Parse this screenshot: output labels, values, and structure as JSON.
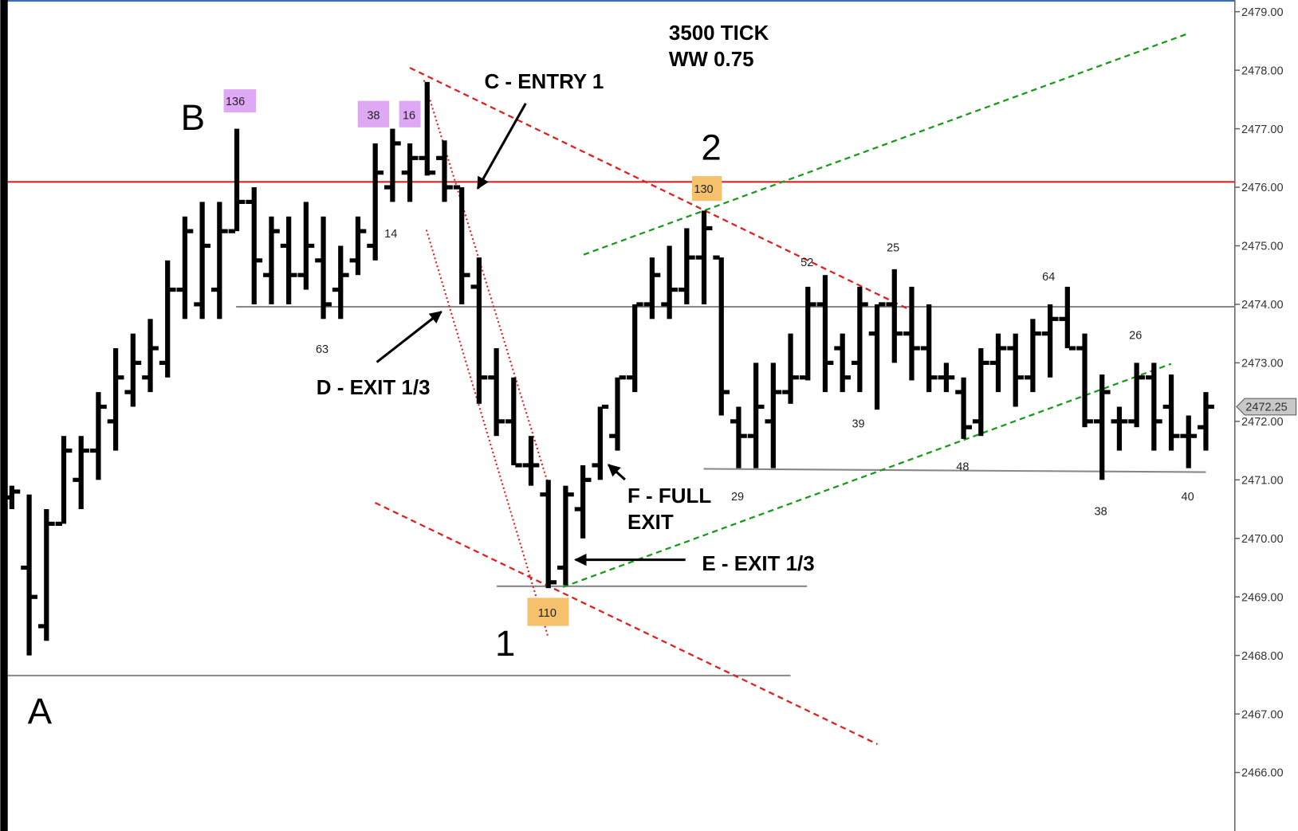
{
  "chart_data": {
    "type": "ohlc",
    "color": "#000000",
    "open": [
      2470.7,
      2469.5,
      2468.5,
      2470.25,
      2471.0,
      2471.5,
      2472.0,
      2472.5,
      2472.75,
      2473.0,
      2474.25,
      2474.0,
      2474.25,
      2475.25,
      2475.75,
      2474.5,
      2475.0,
      2474.5,
      2474.75,
      2474.25,
      2474.75,
      2475.0,
      2476.0,
      2476.25,
      2476.5,
      2476.5,
      2476.0,
      2474.3,
      2472.75,
      2472.0,
      2471.25,
      2470.75,
      2469.5,
      2470.5,
      2471.25,
      2471.75,
      2472.75,
      2474.0,
      2474.0,
      2474.25,
      2474.8,
      2474.8,
      2472.0,
      2471.75,
      2472.0,
      2472.5,
      2472.75,
      2474.0,
      2473.25,
      2473.0,
      2473.5,
      2474.0,
      2473.5,
      2473.25,
      2472.75,
      2472.5,
      2472.0,
      2473.0,
      2473.25,
      2472.75,
      2473.5,
      2473.75,
      2473.25,
      2472.0,
      2472.0,
      2472.0,
      2472.75,
      2472.25,
      2471.75,
      2471.9
    ],
    "high": [
      2470.9,
      2470.75,
      2470.5,
      2471.75,
      2471.75,
      2472.5,
      2473.25,
      2473.5,
      2473.75,
      2474.75,
      2475.5,
      2475.75,
      2475.75,
      2477.0,
      2476.0,
      2475.5,
      2475.5,
      2475.75,
      2475.5,
      2475.0,
      2475.5,
      2476.75,
      2477.0,
      2476.75,
      2477.8,
      2476.8,
      2476.0,
      2474.8,
      2473.25,
      2472.75,
      2471.75,
      2471.0,
      2470.9,
      2471.25,
      2472.25,
      2472.75,
      2474.0,
      2474.8,
      2475.0,
      2475.3,
      2475.6,
      2474.8,
      2472.25,
      2473.0,
      2473.0,
      2473.5,
      2474.3,
      2474.5,
      2473.5,
      2474.3,
      2474.0,
      2474.6,
      2474.3,
      2474.0,
      2473.0,
      2472.75,
      2473.25,
      2473.5,
      2473.5,
      2473.75,
      2474.0,
      2474.3,
      2473.5,
      2472.8,
      2472.25,
      2473.0,
      2473.0,
      2472.8,
      2472.1,
      2472.5
    ],
    "low": [
      2470.5,
      2468.0,
      2468.25,
      2470.25,
      2470.5,
      2471.0,
      2471.5,
      2472.25,
      2472.5,
      2472.75,
      2473.75,
      2473.75,
      2473.75,
      2475.25,
      2474.0,
      2474.0,
      2474.0,
      2474.25,
      2473.75,
      2473.75,
      2474.5,
      2474.75,
      2475.75,
      2475.75,
      2476.2,
      2475.75,
      2474.0,
      2472.3,
      2471.75,
      2471.25,
      2470.9,
      2469.15,
      2469.2,
      2470.0,
      2471.0,
      2471.5,
      2472.5,
      2473.75,
      2473.75,
      2474.0,
      2474.0,
      2472.1,
      2471.2,
      2471.2,
      2471.2,
      2472.3,
      2472.7,
      2472.5,
      2472.5,
      2472.5,
      2472.2,
      2473.0,
      2472.7,
      2472.5,
      2472.5,
      2471.7,
      2471.75,
      2472.5,
      2472.25,
      2472.5,
      2472.75,
      2473.25,
      2471.9,
      2471.0,
      2471.5,
      2471.9,
      2471.5,
      2471.5,
      2471.2,
      2471.5
    ],
    "close": [
      2470.8,
      2469.0,
      2470.25,
      2471.5,
      2471.5,
      2472.25,
      2472.75,
      2473.0,
      2473.25,
      2474.25,
      2475.25,
      2475.0,
      2475.25,
      2475.75,
      2474.75,
      2475.25,
      2474.5,
      2475.0,
      2474.0,
      2474.5,
      2475.25,
      2476.25,
      2476.75,
      2476.5,
      2476.25,
      2476.0,
      2474.5,
      2472.75,
      2472.0,
      2471.25,
      2471.25,
      2469.25,
      2470.75,
      2471.0,
      2472.25,
      2472.75,
      2474.0,
      2474.5,
      2474.25,
      2474.8,
      2475.3,
      2472.5,
      2471.75,
      2472.25,
      2472.5,
      2472.75,
      2474.0,
      2473.0,
      2472.75,
      2474.0,
      2474.0,
      2473.5,
      2473.25,
      2472.75,
      2472.75,
      2471.9,
      2473.0,
      2473.25,
      2472.75,
      2473.5,
      2473.75,
      2473.25,
      2472.0,
      2472.5,
      2472.0,
      2472.75,
      2472.0,
      2471.75,
      2471.75,
      2472.25
    ],
    "ylim": [
      2465.0,
      2479.2
    ],
    "yticks": [
      {
        "value": 2466,
        "label": "2466.00"
      },
      {
        "value": 2467,
        "label": "2467.00"
      },
      {
        "value": 2468,
        "label": "2468.00"
      },
      {
        "value": 2469,
        "label": "2469.00"
      },
      {
        "value": 2470,
        "label": "2470.00"
      },
      {
        "value": 2471,
        "label": "2471.00"
      },
      {
        "value": 2472,
        "label": "2472.00"
      },
      {
        "value": 2473,
        "label": "2473.00"
      },
      {
        "value": 2474,
        "label": "2474.00"
      },
      {
        "value": 2475,
        "label": "2475.00"
      },
      {
        "value": 2476,
        "label": "2476.00"
      },
      {
        "value": 2477,
        "label": "2477.00"
      },
      {
        "value": 2478,
        "label": "2478.00"
      },
      {
        "value": 2479,
        "label": "2479.00"
      }
    ],
    "last_price": 2472.25,
    "labels": [
      "3500 TICK",
      "WW 0.75",
      "C - ENTRY 1",
      "D - EXIT 1/3",
      "E - EXIT 1/3",
      "F - FULL",
      "EXIT",
      "A",
      "B",
      "1",
      "2",
      "136",
      "38",
      "16",
      "14",
      "63",
      "130",
      "52",
      "25",
      "39",
      "64",
      "26",
      "48",
      "29",
      "38",
      "40",
      "110"
    ]
  }
}
